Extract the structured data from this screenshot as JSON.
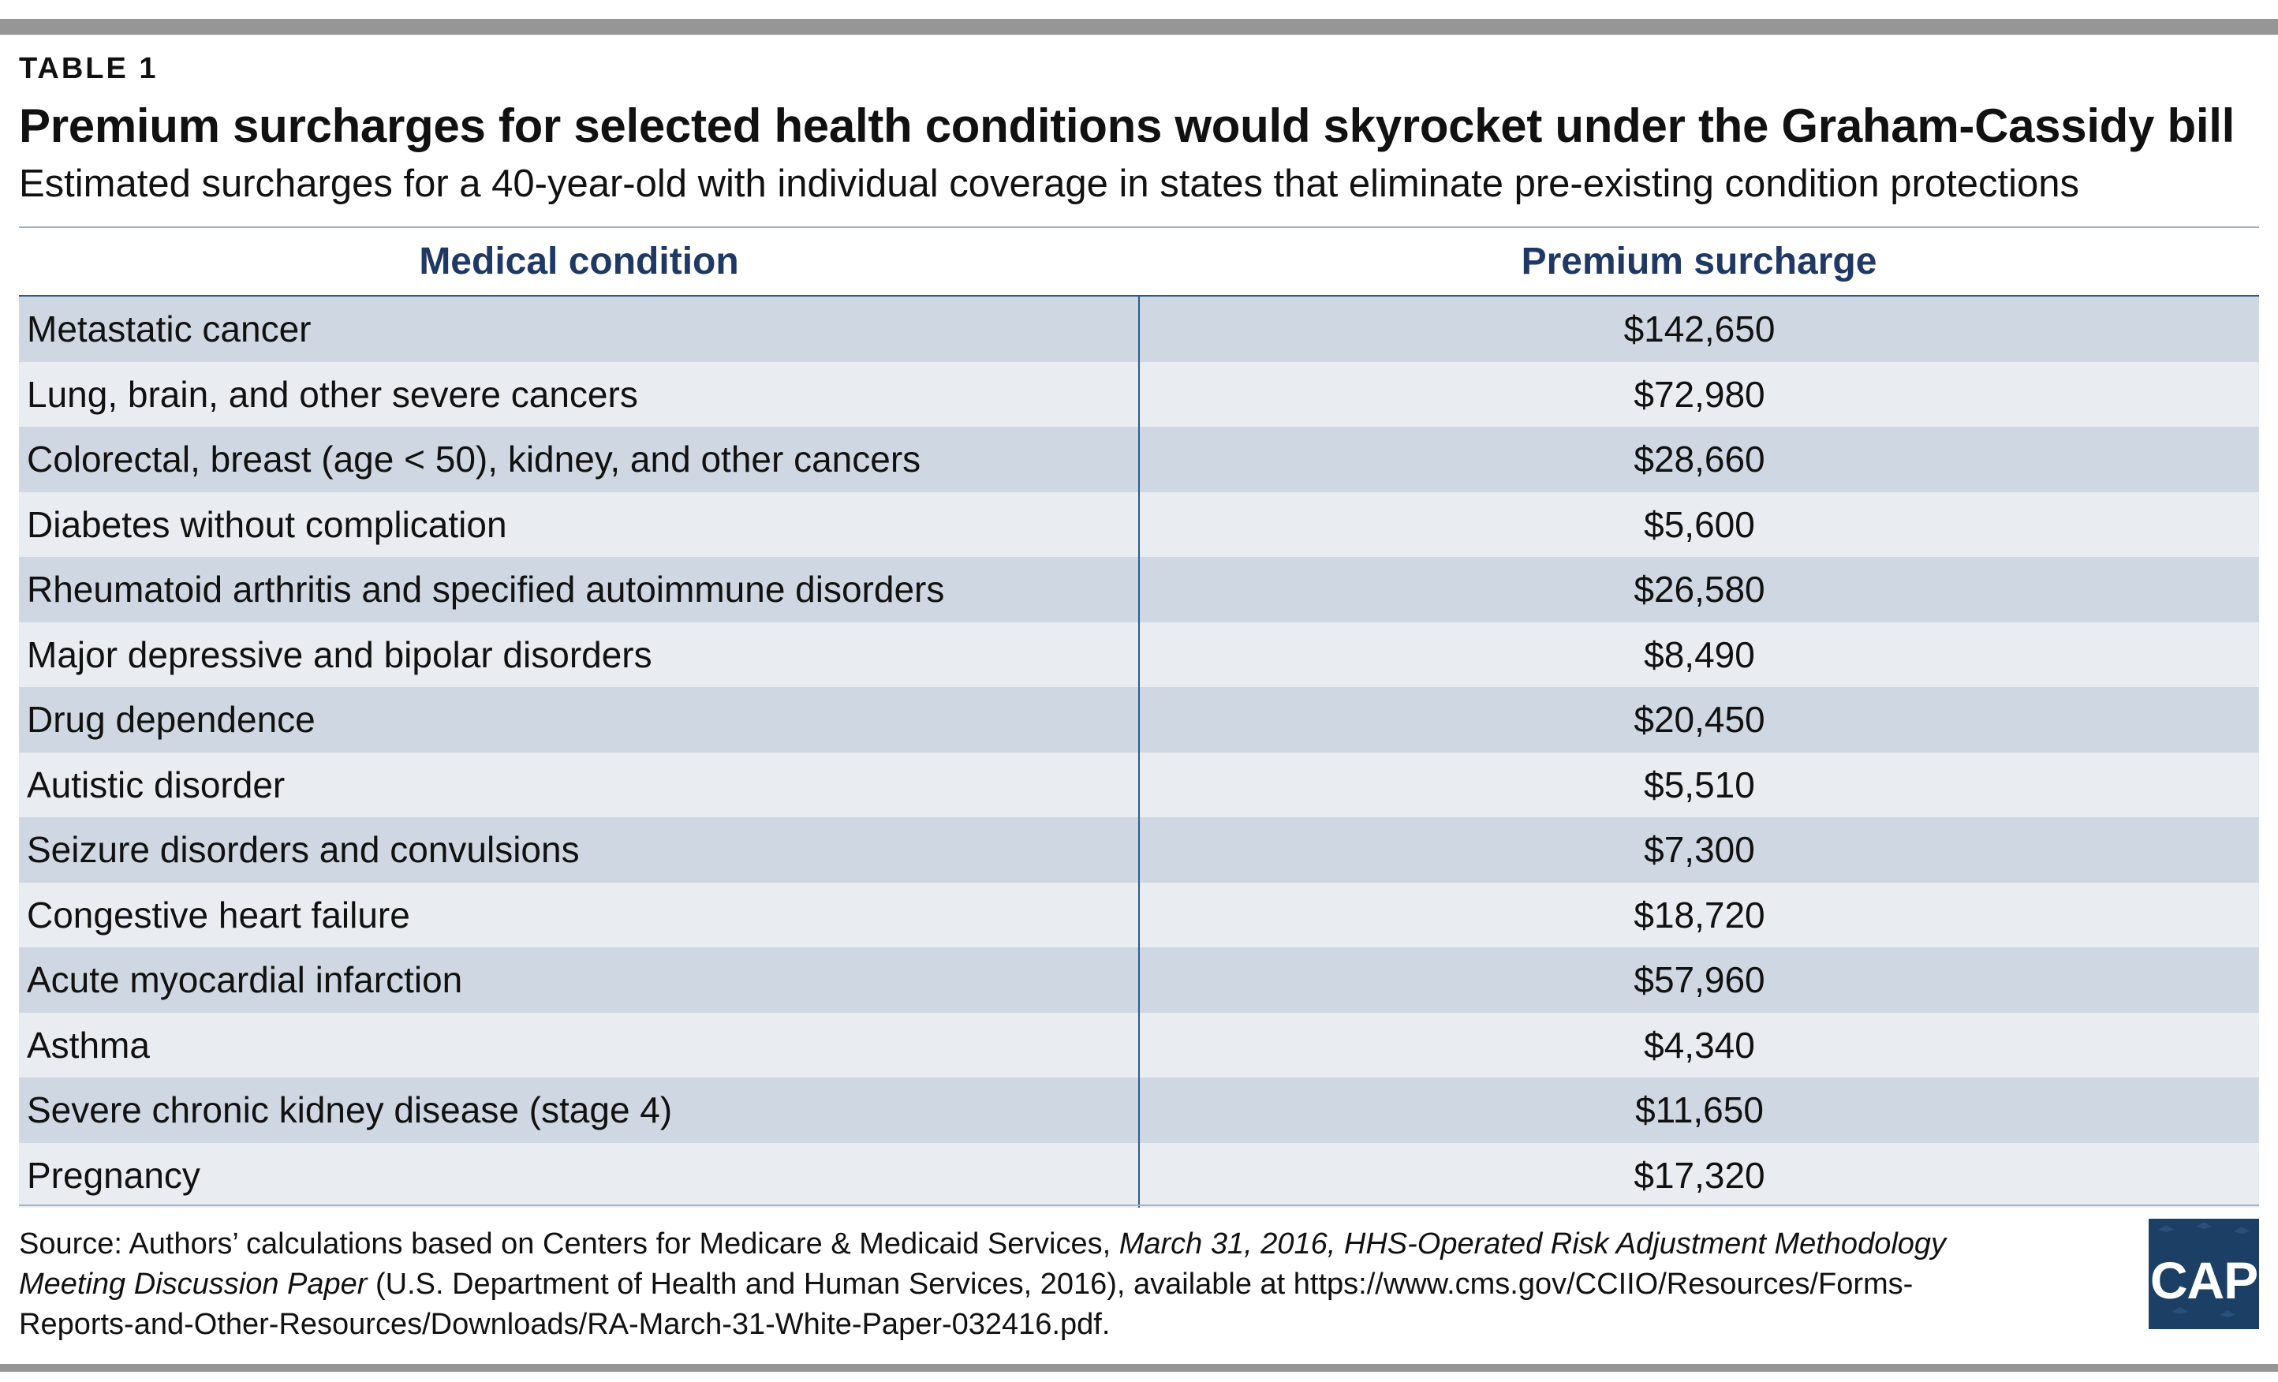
{
  "kicker": "TABLE 1",
  "title": "Premium surcharges for selected health conditions would skyrocket under the Graham-Cassidy bill",
  "subtitle": "Estimated surcharges for a 40-year-old with individual coverage in states that eliminate pre-existing condition protections",
  "chart_data": {
    "type": "table",
    "columns": [
      "Medical condition",
      "Premium surcharge"
    ],
    "rows": [
      [
        "Metastatic cancer",
        "$142,650"
      ],
      [
        "Lung, brain, and other severe cancers",
        "$72,980"
      ],
      [
        "Colorectal, breast (age < 50), kidney, and other cancers",
        "$28,660"
      ],
      [
        "Diabetes without complication",
        "$5,600"
      ],
      [
        "Rheumatoid arthritis and specified autoimmune disorders",
        "$26,580"
      ],
      [
        "Major depressive and bipolar disorders",
        "$8,490"
      ],
      [
        "Drug dependence",
        "$20,450"
      ],
      [
        "Autistic disorder",
        "$5,510"
      ],
      [
        "Seizure disorders and convulsions",
        "$7,300"
      ],
      [
        "Congestive heart failure",
        "$18,720"
      ],
      [
        "Acute myocardial infarction",
        "$57,960"
      ],
      [
        "Asthma",
        "$4,340"
      ],
      [
        "Severe chronic kidney disease (stage 4)",
        "$11,650"
      ],
      [
        "Pregnancy",
        "$17,320"
      ]
    ]
  },
  "source": {
    "prefix": "Source: Authors’ calculations based on Centers for Medicare & Medicaid Services, ",
    "italic": "March 31, 2016, HHS-Operated Risk Adjustment Methodology Meeting Discussion Paper",
    "suffix": " (U.S. Department of Health and Human Services, 2016), available at https://www.cms.gov/CCIIO/Resources/Forms-Reports-and-Other-Resources/Downloads/RA-March-31-White-Paper-032416.pdf."
  },
  "logo": {
    "text": "CAP",
    "background": "#1c3f66"
  },
  "colors": {
    "header_text": "#1f3864",
    "row_dark": "#cfd8e2",
    "row_light": "#e9edf2",
    "divider": "#2e5a8a",
    "frame_bar": "#969696"
  }
}
